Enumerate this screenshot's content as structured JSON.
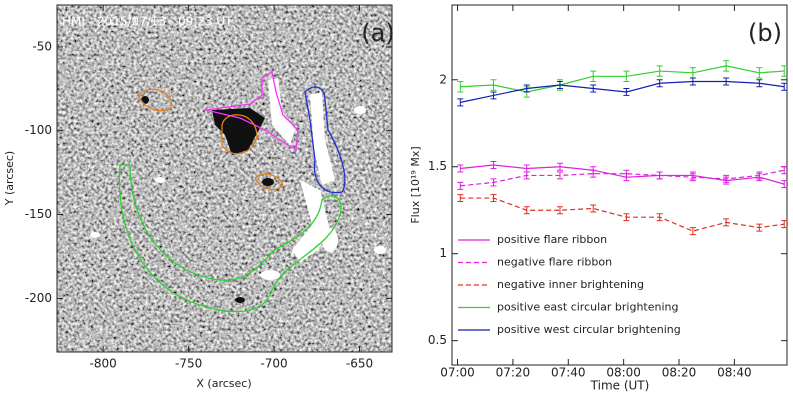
{
  "chart_data": [
    {
      "type": "image",
      "title": "HMI - 2015/07/13 - 09:23 UT",
      "panel_label": "(a)",
      "xlabel": "X (arcsec)",
      "ylabel": "Y (arcsec)",
      "xlim": [
        -827,
        -631
      ],
      "xticks": [
        -800,
        -750,
        -700,
        -650
      ],
      "ylim": [
        -232,
        -25
      ],
      "yticks": [
        -50,
        -100,
        -150,
        -200
      ]
    },
    {
      "type": "line",
      "panel_label": "(b)",
      "xlabel": "Time (UT)",
      "ylabel": "Flux [10¹⁹ Mx]",
      "xlim": [
        418,
        539
      ],
      "xticks": [
        {
          "value": 420,
          "label": "07:00"
        },
        {
          "value": 440,
          "label": "07:20"
        },
        {
          "value": 460,
          "label": "07:40"
        },
        {
          "value": 480,
          "label": "08:00"
        },
        {
          "value": 500,
          "label": "08:20"
        },
        {
          "value": 520,
          "label": "08:40"
        }
      ],
      "ylim": [
        0.36,
        2.43
      ],
      "yticks": [
        0.5,
        1.0,
        1.5,
        2.0
      ],
      "x": [
        421,
        433,
        445,
        457,
        469,
        481,
        493,
        505,
        517,
        529,
        538
      ],
      "legend": "lower left",
      "series": [
        {
          "name": "positive flare ribbon",
          "color": "#e020e0",
          "dash": false,
          "values": [
            1.49,
            1.51,
            1.49,
            1.5,
            1.48,
            1.44,
            1.45,
            1.45,
            1.42,
            1.44,
            1.4
          ],
          "errors": [
            0.02,
            0.02,
            0.02,
            0.02,
            0.02,
            0.02,
            0.02,
            0.02,
            0.02,
            0.02,
            0.02
          ]
        },
        {
          "name": "negative flare ribbon",
          "color": "#e020e0",
          "dash": true,
          "values": [
            1.39,
            1.41,
            1.45,
            1.45,
            1.46,
            1.46,
            1.45,
            1.44,
            1.43,
            1.45,
            1.48
          ],
          "errors": [
            0.02,
            0.02,
            0.02,
            0.02,
            0.02,
            0.02,
            0.02,
            0.02,
            0.02,
            0.02,
            0.02
          ]
        },
        {
          "name": "negative inner brightening",
          "color": "#e03020",
          "dash": true,
          "values": [
            1.32,
            1.32,
            1.25,
            1.25,
            1.26,
            1.21,
            1.21,
            1.13,
            1.18,
            1.15,
            1.17
          ],
          "errors": [
            0.02,
            0.02,
            0.02,
            0.02,
            0.02,
            0.02,
            0.02,
            0.02,
            0.02,
            0.02,
            0.02
          ]
        },
        {
          "name": "positive east circular brightening",
          "color": "#30d030",
          "dash": false,
          "values": [
            1.96,
            1.97,
            1.93,
            1.97,
            2.02,
            2.02,
            2.05,
            2.04,
            2.08,
            2.04,
            2.05
          ],
          "errors": [
            0.03,
            0.03,
            0.03,
            0.03,
            0.03,
            0.03,
            0.03,
            0.03,
            0.03,
            0.03,
            0.03
          ]
        },
        {
          "name": "positive west circular brightening",
          "color": "#1020b0",
          "dash": false,
          "values": [
            1.87,
            1.91,
            1.95,
            1.97,
            1.95,
            1.93,
            1.98,
            1.99,
            1.99,
            1.98,
            1.96
          ],
          "errors": [
            0.02,
            0.02,
            0.02,
            0.02,
            0.02,
            0.02,
            0.02,
            0.02,
            0.02,
            0.02,
            0.02
          ]
        }
      ]
    }
  ]
}
